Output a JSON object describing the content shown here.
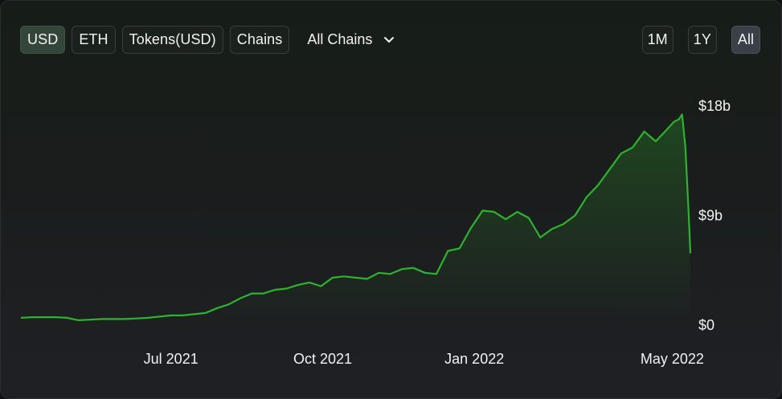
{
  "toolbar": {
    "denomination_tabs": [
      "USD",
      "ETH",
      "Tokens(USD)",
      "Chains"
    ],
    "active_denomination": "USD",
    "chain_select": {
      "selected": "All Chains",
      "icon": "chevron-down-icon"
    },
    "range_tabs": [
      "1M",
      "1Y",
      "All"
    ],
    "active_range": "All"
  },
  "colors": {
    "line": "#2fb32f",
    "accent_active": "#34463a"
  },
  "chart_data": {
    "type": "area",
    "title": "",
    "xlabel": "",
    "ylabel": "",
    "x_ticks": [
      "Jul 2021",
      "Oct 2021",
      "Jan 2022",
      "May 2022"
    ],
    "y_ticks": [
      "$0",
      "$9b",
      "$18b"
    ],
    "ylim": [
      0,
      18
    ],
    "y_unit": "billion USD",
    "xlim": [
      "2021-04-01",
      "2022-05-12"
    ],
    "grid": false,
    "legend": "none",
    "series": [
      {
        "x": [
          "2021-04-01",
          "2021-04-08",
          "2021-04-15",
          "2021-04-22",
          "2021-04-29",
          "2021-05-06",
          "2021-05-13",
          "2021-05-20",
          "2021-05-27",
          "2021-06-03",
          "2021-06-10",
          "2021-06-17",
          "2021-06-24",
          "2021-07-01",
          "2021-07-08",
          "2021-07-15",
          "2021-07-22",
          "2021-07-29",
          "2021-08-05",
          "2021-08-12",
          "2021-08-19",
          "2021-08-26",
          "2021-09-02",
          "2021-09-09",
          "2021-09-16",
          "2021-09-23",
          "2021-09-30",
          "2021-10-07",
          "2021-10-14",
          "2021-10-21",
          "2021-10-28",
          "2021-11-04",
          "2021-11-11",
          "2021-11-18",
          "2021-11-25",
          "2021-12-02",
          "2021-12-09",
          "2021-12-16",
          "2021-12-23",
          "2021-12-30",
          "2022-01-06",
          "2022-01-13",
          "2022-01-20",
          "2022-01-27",
          "2022-02-03",
          "2022-02-10",
          "2022-02-17",
          "2022-02-24",
          "2022-03-03",
          "2022-03-10",
          "2022-03-17",
          "2022-03-24",
          "2022-03-31",
          "2022-04-07",
          "2022-04-14",
          "2022-04-21",
          "2022-04-28",
          "2022-05-02",
          "2022-05-05",
          "2022-05-07",
          "2022-05-09",
          "2022-05-11",
          "2022-05-12"
        ],
        "values": [
          0.6,
          0.65,
          0.65,
          0.65,
          0.6,
          0.4,
          0.45,
          0.5,
          0.5,
          0.5,
          0.55,
          0.6,
          0.7,
          0.8,
          0.8,
          0.9,
          1.0,
          1.4,
          1.7,
          2.2,
          2.6,
          2.6,
          2.9,
          3.0,
          3.3,
          3.5,
          3.2,
          3.9,
          4.0,
          3.9,
          3.8,
          4.3,
          4.2,
          4.6,
          4.7,
          4.3,
          4.2,
          6.1,
          6.3,
          8.0,
          9.4,
          9.3,
          8.7,
          9.3,
          8.8,
          7.2,
          7.9,
          8.3,
          9.0,
          10.5,
          11.5,
          12.8,
          14.1,
          14.6,
          15.9,
          15.1,
          16.1,
          16.7,
          16.9,
          17.3,
          14.6,
          9.1,
          5.9
        ]
      }
    ]
  }
}
